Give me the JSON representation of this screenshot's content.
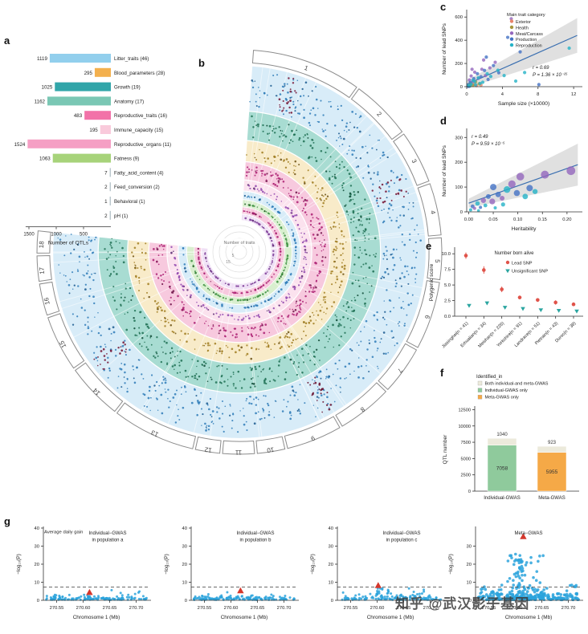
{
  "panel_labels": {
    "a": "a",
    "b": "b",
    "c": "c",
    "d": "d",
    "e": "e",
    "f": "f",
    "g": "g"
  },
  "watermark": "知乎 @武汉影子基因",
  "chart_data": [
    {
      "id": "a",
      "type": "bar",
      "orientation": "horizontal-reversed",
      "xlabel": "Number of QTLs",
      "ticks": [
        1500,
        1000,
        500
      ],
      "categories": [
        "Litter_traits (46)",
        "Blood_parameters (28)",
        "Growth (19)",
        "Anatomy (17)",
        "Reproductive_traits (16)",
        "Immune_capacity (15)",
        "Reproductive_organs (11)",
        "Fatness (9)",
        "Fatty_acid_content (4)",
        "Feed_conversion (2)",
        "Behavioral (1)",
        "pH (1)"
      ],
      "values": [
        1119,
        295,
        1025,
        1162,
        483,
        195,
        1524,
        1063,
        7,
        2,
        1,
        2
      ],
      "colors": [
        "#92cfed",
        "#f3b04e",
        "#31a5a9",
        "#7ac7b4",
        "#f272a8",
        "#f9cadb",
        "#f59fc4",
        "#a7d37a",
        "#b9c6cc",
        "#b9c6cc",
        "#b9c6cc",
        "#b9c6cc"
      ]
    },
    {
      "id": "b",
      "type": "circos",
      "center_label": "Number of traits",
      "center_ticks": [
        "5",
        "15"
      ],
      "chromosomes": [
        "1",
        "2",
        "3",
        "4",
        "5",
        "6",
        "7",
        "8",
        "9",
        "10",
        "11",
        "12",
        "13",
        "14",
        "15",
        "16",
        "17",
        "18"
      ],
      "chrom_sizes": [
        274,
        151,
        132,
        130,
        104,
        170,
        121,
        138,
        139,
        69,
        79,
        61,
        208,
        141,
        140,
        79,
        63,
        55
      ],
      "start_angle": 4,
      "span": 272,
      "rings": [
        {
          "r0": 0.7,
          "r1": 0.92,
          "bg": "#d8ecf8",
          "dot": "#2f7db8",
          "alt": "#1b5a8f",
          "n": 620
        },
        {
          "r0": 0.555,
          "r1": 0.695,
          "bg": "#a8dcd2",
          "dot": "#1d6f52",
          "alt": "#0e4a36",
          "n": 420
        },
        {
          "r0": 0.45,
          "r1": 0.55,
          "bg": "#f8ebc9",
          "dot": "#a07c20",
          "alt": "#6d5214",
          "n": 260
        },
        {
          "r0": 0.36,
          "r1": 0.445,
          "bg": "#f7c9de",
          "dot": "#ab1f72",
          "alt": "#6d1147",
          "n": 240
        },
        {
          "r0": 0.305,
          "r1": 0.355,
          "bg": "#fbe2ee",
          "dot": "#8e44ad",
          "alt": "#5e2b73",
          "n": 140
        },
        {
          "r0": 0.262,
          "r1": 0.3,
          "bg": "#d8ecf8",
          "dot": "#2f7db8",
          "alt": "#1b5a8f",
          "n": 110
        },
        {
          "r0": 0.225,
          "r1": 0.258,
          "bg": "#d9efcf",
          "dot": "#3b8f3e",
          "alt": "#256327",
          "n": 100
        },
        {
          "r0": 0.19,
          "r1": 0.222,
          "bg": "#f7c9de",
          "dot": "#ab1f72",
          "alt": "#7a1650",
          "n": 90
        },
        {
          "r0": 0.158,
          "r1": 0.186,
          "bg": "#efe0f5",
          "dot": "#7d3c98",
          "alt": "#5e2b73",
          "n": 80
        }
      ]
    },
    {
      "id": "c",
      "type": "scatter",
      "ylabel": "Number of lead SNPs",
      "xlabel": "Sample size (×10000)",
      "legend_title": "Main trait category",
      "legend": [
        "Exterior",
        "Health",
        "Meat/Carcass",
        "Production",
        "Reproduction"
      ],
      "cat_colors": [
        "#e8846b",
        "#a8973c",
        "#9467bd",
        "#4472c4",
        "#26b3c7"
      ],
      "r_label": "r = 0.69",
      "p_label": "P = 1.36 × 10⁻²⁵",
      "xtick_vals": [
        0,
        4,
        8,
        12
      ],
      "xtick_labels": [
        "0",
        "4",
        "8",
        "12"
      ],
      "ytick_vals": [
        0,
        200,
        400,
        600
      ],
      "ytick_labels": [
        "0",
        "200",
        "400",
        "600"
      ],
      "points": [
        [
          0.3,
          12,
          0
        ],
        [
          0.5,
          30,
          0
        ],
        [
          0.8,
          22,
          0
        ],
        [
          1.1,
          9,
          0
        ],
        [
          1.6,
          14,
          0
        ],
        [
          0.2,
          6,
          1
        ],
        [
          0.4,
          18,
          1
        ],
        [
          0.7,
          11,
          1
        ],
        [
          1.0,
          42,
          1
        ],
        [
          1.4,
          24,
          1
        ],
        [
          0.3,
          58,
          2
        ],
        [
          0.5,
          92,
          2
        ],
        [
          0.7,
          46,
          2
        ],
        [
          0.9,
          125,
          2
        ],
        [
          1.3,
          72,
          2
        ],
        [
          1.7,
          150,
          2
        ],
        [
          2.1,
          96,
          2
        ],
        [
          2.6,
          162,
          2
        ],
        [
          3.2,
          210,
          2
        ],
        [
          5.0,
          585,
          2
        ],
        [
          0.6,
          150,
          2
        ],
        [
          1.9,
          230,
          2
        ],
        [
          0.25,
          2,
          2
        ],
        [
          0.4,
          36,
          3
        ],
        [
          0.8,
          70,
          3
        ],
        [
          1.2,
          112,
          3
        ],
        [
          1.6,
          86,
          3
        ],
        [
          2.0,
          140,
          3
        ],
        [
          2.4,
          62,
          3
        ],
        [
          3.0,
          182,
          3
        ],
        [
          3.6,
          120,
          3
        ],
        [
          4.6,
          425,
          3
        ],
        [
          6.0,
          300,
          3
        ],
        [
          8.1,
          18,
          3
        ],
        [
          2.2,
          255,
          3
        ],
        [
          0.15,
          3,
          3
        ],
        [
          0.2,
          10,
          4
        ],
        [
          0.5,
          22,
          4
        ],
        [
          0.7,
          55,
          4
        ],
        [
          0.9,
          44,
          4
        ],
        [
          1.0,
          16,
          4
        ],
        [
          1.3,
          76,
          4
        ],
        [
          1.5,
          28,
          4
        ],
        [
          1.8,
          38,
          4
        ],
        [
          2.3,
          112,
          4
        ],
        [
          2.7,
          88,
          4
        ],
        [
          3.5,
          142,
          4
        ],
        [
          4.2,
          96,
          4
        ],
        [
          5.5,
          48,
          4
        ],
        [
          6.5,
          122,
          4
        ],
        [
          11.5,
          332,
          4
        ],
        [
          0.35,
          5,
          4
        ]
      ]
    },
    {
      "id": "d",
      "type": "scatter",
      "ylabel": "Number of lead SNPs",
      "xlabel": "Heritability",
      "r_label": "r = 0.49",
      "p_label": "P = 9.59 × 10⁻⁵",
      "palette": [
        "#9467bd",
        "#4472c4",
        "#26b3c7"
      ],
      "xtick_vals": [
        0,
        0.05,
        0.1,
        0.15,
        0.2
      ],
      "xtick_labels": [
        "0.00",
        "0.05",
        "0.10",
        "0.15",
        "0.20"
      ],
      "ytick_vals": [
        0,
        100,
        200,
        300
      ],
      "ytick_labels": [
        "0",
        "100",
        "200",
        "300"
      ],
      "points": [
        [
          0.004,
          8,
          2,
          2
        ],
        [
          0.008,
          22,
          1,
          2.4
        ],
        [
          0.012,
          14,
          0,
          2
        ],
        [
          0.018,
          34,
          2,
          2.8
        ],
        [
          0.024,
          18,
          1,
          2
        ],
        [
          0.03,
          46,
          0,
          3.2
        ],
        [
          0.034,
          26,
          2,
          2.4
        ],
        [
          0.04,
          62,
          1,
          3
        ],
        [
          0.048,
          42,
          0,
          3.6
        ],
        [
          0.054,
          16,
          2,
          2
        ],
        [
          0.06,
          70,
          1,
          3.4
        ],
        [
          0.068,
          55,
          0,
          3
        ],
        [
          0.078,
          90,
          2,
          4.2
        ],
        [
          0.088,
          112,
          0,
          4.6
        ],
        [
          0.098,
          76,
          1,
          3.8
        ],
        [
          0.105,
          142,
          0,
          4.8
        ],
        [
          0.115,
          62,
          2,
          3.4
        ],
        [
          0.124,
          96,
          1,
          4
        ],
        [
          0.135,
          82,
          2,
          3.2
        ],
        [
          0.155,
          150,
          0,
          5
        ],
        [
          0.208,
          166,
          0,
          5.4
        ],
        [
          0.02,
          5,
          2,
          1.8
        ],
        [
          0.05,
          100,
          1,
          4
        ],
        [
          0.07,
          30,
          2,
          2.6
        ]
      ]
    },
    {
      "id": "e",
      "type": "dotplot",
      "ylabel": "Polygenic score",
      "legend_title": "Number born alive",
      "legend": [
        "Lead SNP",
        "Unsignificant SNP"
      ],
      "lead_color": "#e0534a",
      "unsig_color": "#2aa5a0",
      "ytick_vals": [
        0,
        2.5,
        5,
        7.5,
        10
      ],
      "ytick_labels": [
        "0.0",
        "2.5",
        "5.0",
        "7.5",
        "10.0"
      ],
      "breeds": [
        "Jiaxinghei(n = 41)",
        "Erhualian(n = 34)",
        "Meishan(n = 226)",
        "Yorkshire(n = 91)",
        "Landrace(n = 51)",
        "Pietrain(n = 43)",
        "Duroc(n = 38)"
      ],
      "lead_values": [
        9.7,
        7.4,
        4.3,
        3.0,
        2.6,
        2.2,
        1.9
      ],
      "lead_err": [
        0.5,
        0.6,
        0.45,
        0.3,
        0.3,
        0.35,
        0.3
      ],
      "unsig_values": [
        1.7,
        2.1,
        1.4,
        1.2,
        1.0,
        0.9,
        0.8
      ],
      "unsig_err": [
        0.2,
        0.25,
        0.15,
        0.12,
        0.12,
        0.15,
        0.12
      ]
    },
    {
      "id": "f",
      "type": "bar-stacked",
      "ylabel": "QTL number",
      "legend_title": "Identified_in",
      "legend": [
        "Both individual-and meta-GWAS",
        "Individual-GWAS only",
        "Meta-GWAS only"
      ],
      "legend_colors": [
        "#eceadb",
        "#8fca9c",
        "#f5a947"
      ],
      "ytick_vals": [
        0,
        2500,
        5000,
        7500,
        10000,
        12500
      ],
      "ytick_labels": [
        "0",
        "2500",
        "5000",
        "7500",
        "10000",
        "12500"
      ],
      "categories": [
        "Individual-GWAS",
        "Meta-GWAS"
      ],
      "bars": [
        {
          "only": 7058,
          "both": 1040,
          "color": "#8fca9c"
        },
        {
          "only": 5955,
          "both": 923,
          "color": "#f5a947"
        }
      ]
    },
    {
      "id": "g",
      "type": "manhattan",
      "ylabel": "−log₁₀(P)",
      "xlabel": "Chromosome 1 (Mb)",
      "threshold": 7.3,
      "point_color": "#2ba3dc",
      "peak_color": "#d4372c",
      "xtick_vals": [
        270.55,
        270.6,
        270.65,
        270.7
      ],
      "xtick_labels": [
        "270.55",
        "270.60",
        "270.65",
        "270.70"
      ],
      "plots": [
        {
          "corner": "Average daily gain",
          "title_lines": [
            "Individual−GWAS",
            "in population a"
          ],
          "ymax": 40,
          "ytick_vals": [
            0,
            10,
            20,
            30,
            40
          ],
          "ytick_labels": [
            "0",
            "10",
            "20",
            "30",
            "40"
          ],
          "peak": [
            270.612,
            4.3
          ]
        },
        {
          "title_lines": [
            "Individual−GWAS",
            "in population b"
          ],
          "ymax": 40,
          "ytick_vals": [
            0,
            10,
            20,
            30,
            40
          ],
          "ytick_labels": [
            "0",
            "10",
            "20",
            "30",
            "40"
          ],
          "peak": [
            270.618,
            5.2
          ]
        },
        {
          "title_lines": [
            "Individual−GWAS",
            "in population c"
          ],
          "ymax": 40,
          "ytick_vals": [
            0,
            10,
            20,
            30,
            40
          ],
          "ytick_labels": [
            "0",
            "10",
            "20",
            "30",
            "40"
          ],
          "peak": [
            270.602,
            8.1
          ]
        },
        {
          "title_lines": [
            "Meta−GWAS"
          ],
          "ymax": 40,
          "ytick_vals": [
            0,
            10,
            20,
            30
          ],
          "ytick_labels": [
            "0",
            "10",
            "20",
            "30"
          ],
          "peak": [
            270.615,
            35.2
          ],
          "dense": true
        }
      ]
    }
  ]
}
